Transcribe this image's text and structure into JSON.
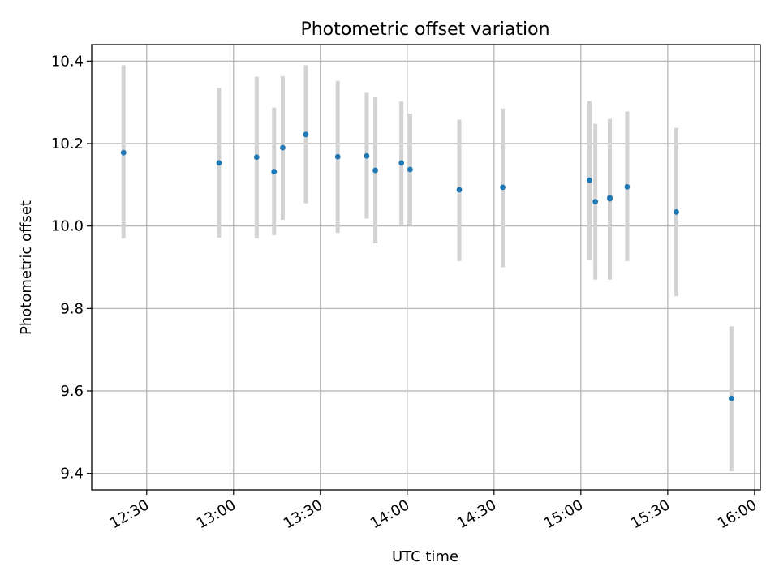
{
  "chart_data": {
    "type": "scatter",
    "title": "Photometric offset variation",
    "xlabel": "UTC time",
    "ylabel": "Photometric offset",
    "x_ticks": [
      "12:30",
      "13:00",
      "13:30",
      "14:00",
      "14:30",
      "15:00",
      "15:30",
      "16:00"
    ],
    "y_ticks": [
      "9.4",
      "9.6",
      "9.8",
      "10.0",
      "10.2",
      "10.4"
    ],
    "xlim": [
      "12:11",
      "16:02"
    ],
    "ylim": [
      9.36,
      10.44
    ],
    "grid": true,
    "colors": {
      "points": "#1f77b4",
      "errorbars": "#d3d3d3",
      "grid": "#b0b0b0"
    },
    "series": [
      {
        "x": [
          "12:22",
          "12:55",
          "13:08",
          "13:14",
          "13:17",
          "13:25",
          "13:36",
          "13:46",
          "13:49",
          "13:58",
          "14:01",
          "14:18",
          "14:33",
          "15:03",
          "15:05",
          "15:10",
          "15:10",
          "15:16",
          "15:33",
          "15:52"
        ],
        "y": [
          10.178,
          10.153,
          10.167,
          10.132,
          10.19,
          10.222,
          10.168,
          10.17,
          10.135,
          10.153,
          10.137,
          10.088,
          10.094,
          10.111,
          10.059,
          10.066,
          10.069,
          10.095,
          10.034,
          9.582
        ],
        "y_low": [
          9.97,
          9.972,
          9.97,
          9.978,
          10.015,
          10.055,
          9.983,
          10.018,
          9.958,
          10.003,
          10.0,
          9.915,
          9.9,
          9.918,
          9.87,
          9.87,
          9.885,
          9.915,
          9.83,
          9.405
        ],
        "y_high": [
          10.39,
          10.335,
          10.362,
          10.287,
          10.363,
          10.39,
          10.352,
          10.323,
          10.312,
          10.302,
          10.273,
          10.258,
          10.285,
          10.303,
          10.248,
          10.26,
          10.253,
          10.278,
          10.238,
          9.757
        ]
      }
    ]
  }
}
